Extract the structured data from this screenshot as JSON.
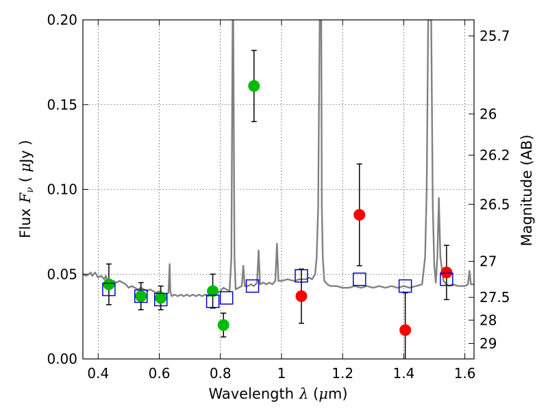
{
  "chart_data": {
    "type": "scatter",
    "xlabel": "Wavelength",
    "xlabel_symbol": "λ",
    "xlabel_unit_open": " (",
    "xlabel_unit_mu": "μ",
    "xlabel_unit_rest": "m)",
    "ylabel": "Flux",
    "ylabel_symbol": "F",
    "ylabel_subscript": "ν",
    "ylabel_unit_open": " ( ",
    "ylabel_unit_mu": "μ",
    "ylabel_unit_rest": "Jy )",
    "y2label": "Magnitude (AB)",
    "xlim": [
      0.35,
      1.63
    ],
    "ylim": [
      0.0,
      0.2
    ],
    "grid": true,
    "x_ticks": [
      0.4,
      0.6,
      0.8,
      1.0,
      1.2,
      1.4,
      1.6
    ],
    "x_tick_labels": [
      "0.4",
      "0.6",
      "0.8",
      "1",
      "1.2",
      "1.4",
      "1.6"
    ],
    "y_ticks": [
      0.0,
      0.05,
      0.1,
      0.15,
      0.2
    ],
    "y_tick_labels": [
      "0.00",
      "0.05",
      "0.10",
      "0.15",
      "0.20"
    ],
    "y2_ticks": [
      25.7,
      26,
      26.2,
      26.5,
      27,
      27.5,
      28,
      29
    ],
    "y2_tick_labels": [
      "25.7",
      "26",
      "26.2",
      "26.5",
      "27",
      "27.5",
      "28",
      "29"
    ],
    "series": [
      {
        "name": "model_spectrum",
        "kind": "line",
        "color": "#808080",
        "x": [
          0.35,
          0.36,
          0.37,
          0.375,
          0.38,
          0.39,
          0.4,
          0.41,
          0.42,
          0.425,
          0.43,
          0.44,
          0.45,
          0.46,
          0.47,
          0.48,
          0.49,
          0.5,
          0.51,
          0.52,
          0.53,
          0.54,
          0.55,
          0.56,
          0.57,
          0.58,
          0.59,
          0.6,
          0.61,
          0.62,
          0.63,
          0.634,
          0.636,
          0.64,
          0.65,
          0.66,
          0.67,
          0.68,
          0.69,
          0.7,
          0.71,
          0.72,
          0.73,
          0.74,
          0.75,
          0.76,
          0.77,
          0.78,
          0.79,
          0.8,
          0.81,
          0.82,
          0.83,
          0.836,
          0.84,
          0.842,
          0.846,
          0.85,
          0.86,
          0.87,
          0.875,
          0.88,
          0.89,
          0.9,
          0.91,
          0.92,
          0.925,
          0.93,
          0.94,
          0.95,
          0.96,
          0.97,
          0.98,
          0.985,
          0.99,
          1.0,
          1.02,
          1.04,
          1.06,
          1.08,
          1.09,
          1.1,
          1.11,
          1.115,
          1.12,
          1.125,
          1.128,
          1.13,
          1.132,
          1.135,
          1.14,
          1.15,
          1.16,
          1.18,
          1.2,
          1.22,
          1.24,
          1.26,
          1.28,
          1.3,
          1.32,
          1.34,
          1.36,
          1.38,
          1.4,
          1.42,
          1.44,
          1.46,
          1.47,
          1.475,
          1.48,
          1.485,
          1.49,
          1.495,
          1.5,
          1.505,
          1.51,
          1.515,
          1.52,
          1.53,
          1.54,
          1.55,
          1.56,
          1.58,
          1.6,
          1.61,
          1.615,
          1.62,
          1.63
        ],
        "y": [
          0.05,
          0.049,
          0.05,
          0.051,
          0.049,
          0.051,
          0.048,
          0.049,
          0.047,
          0.049,
          0.046,
          0.045,
          0.046,
          0.045,
          0.046,
          0.045,
          0.044,
          0.042,
          0.043,
          0.042,
          0.041,
          0.042,
          0.041,
          0.04,
          0.041,
          0.04,
          0.039,
          0.04,
          0.039,
          0.038,
          0.039,
          0.056,
          0.04,
          0.037,
          0.038,
          0.037,
          0.038,
          0.037,
          0.038,
          0.037,
          0.038,
          0.037,
          0.038,
          0.037,
          0.038,
          0.037,
          0.038,
          0.04,
          0.039,
          0.04,
          0.042,
          0.041,
          0.04,
          0.06,
          0.2,
          0.2,
          0.06,
          0.041,
          0.042,
          0.043,
          0.055,
          0.043,
          0.043,
          0.044,
          0.043,
          0.045,
          0.064,
          0.044,
          0.045,
          0.044,
          0.045,
          0.044,
          0.046,
          0.068,
          0.046,
          0.046,
          0.047,
          0.046,
          0.047,
          0.047,
          0.048,
          0.047,
          0.05,
          0.06,
          0.09,
          0.2,
          0.2,
          0.2,
          0.09,
          0.06,
          0.046,
          0.044,
          0.043,
          0.043,
          0.042,
          0.042,
          0.043,
          0.042,
          0.043,
          0.042,
          0.043,
          0.042,
          0.043,
          0.042,
          0.043,
          0.042,
          0.043,
          0.044,
          0.06,
          0.1,
          0.2,
          0.2,
          0.2,
          0.09,
          0.055,
          0.045,
          0.06,
          0.095,
          0.06,
          0.046,
          0.044,
          0.043,
          0.044,
          0.043,
          0.043,
          0.044,
          0.052,
          0.044,
          0.044
        ]
      },
      {
        "name": "green_photometry",
        "kind": "errorbar",
        "color": "#00bb00",
        "x": [
          0.435,
          0.54,
          0.605,
          0.775,
          0.81,
          0.91
        ],
        "y": [
          0.044,
          0.037,
          0.036,
          0.04,
          0.02,
          0.161
        ],
        "yerr": [
          0.012,
          0.008,
          0.007,
          0.01,
          0.007,
          0.021
        ]
      },
      {
        "name": "red_photometry",
        "kind": "errorbar",
        "color": "#ff0000",
        "x": [
          1.065,
          1.255,
          1.405,
          1.54
        ],
        "y": [
          0.037,
          0.085,
          0.017,
          0.051
        ],
        "yerr": [
          0.016,
          0.03,
          0.022,
          0.016
        ]
      },
      {
        "name": "model_bandpass_flux",
        "kind": "open_square",
        "color": "#0000cc",
        "x": [
          0.435,
          0.54,
          0.605,
          0.775,
          0.82,
          0.905,
          1.065,
          1.255,
          1.405,
          1.54
        ],
        "y": [
          0.041,
          0.037,
          0.035,
          0.034,
          0.036,
          0.043,
          0.049,
          0.047,
          0.043,
          0.047
        ]
      }
    ]
  }
}
